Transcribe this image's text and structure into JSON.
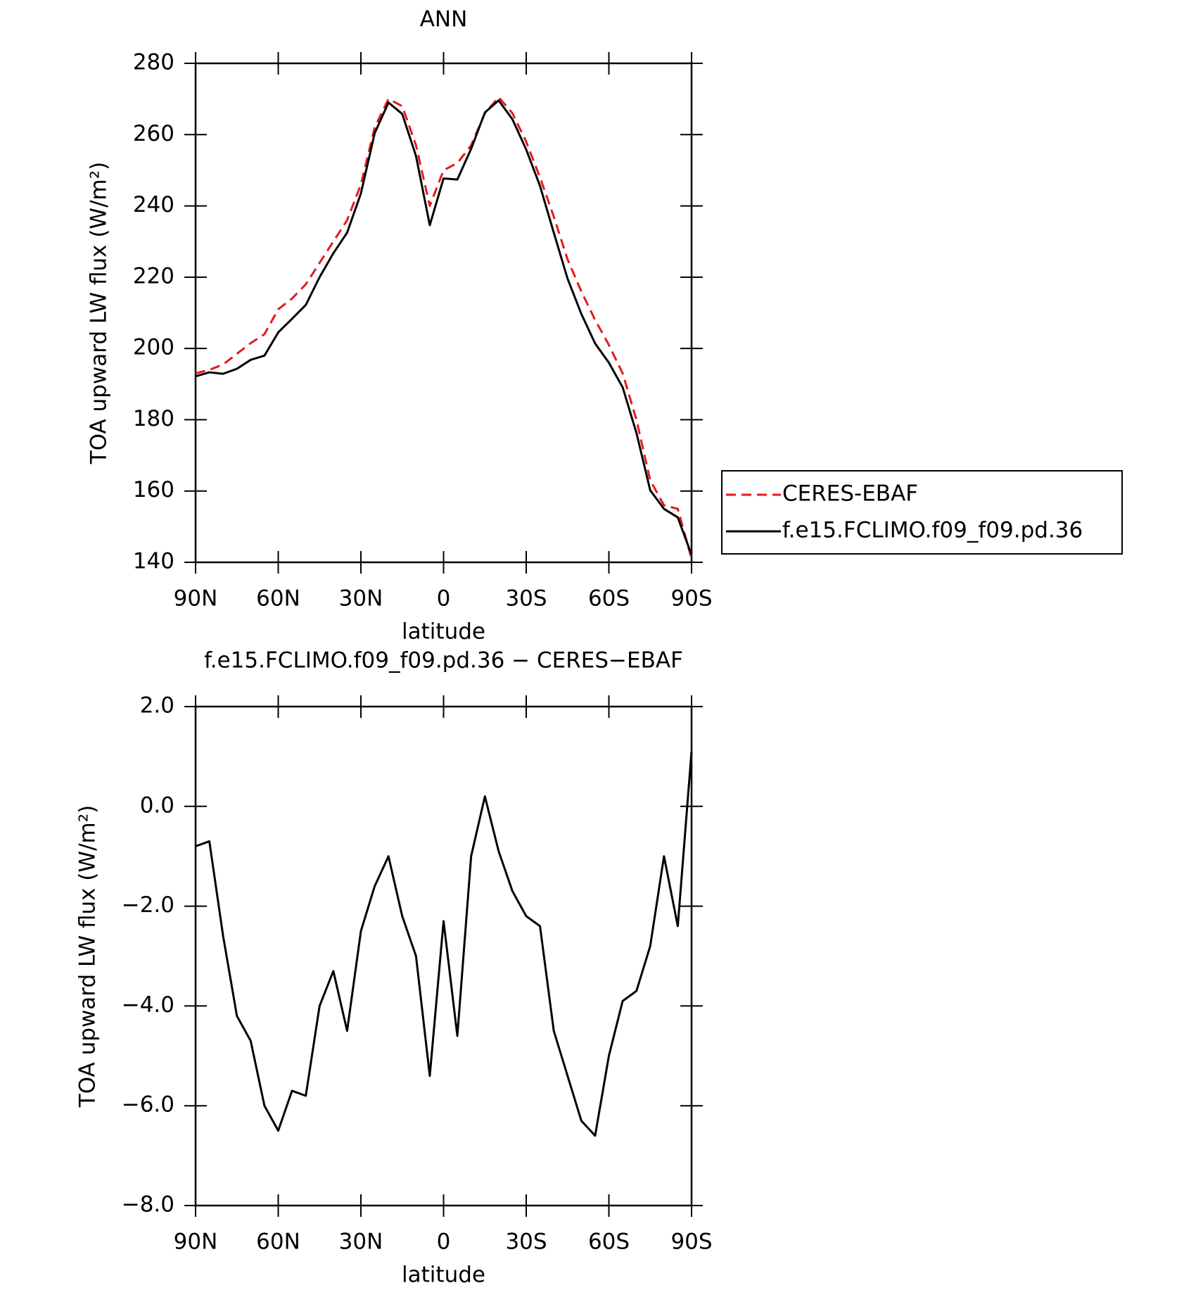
{
  "chart_data": [
    {
      "type": "line",
      "title": "ANN",
      "xlabel": "latitude",
      "ylabel": "TOA upward LW flux (W/m²)",
      "x": [
        90,
        85,
        80,
        75,
        70,
        65,
        60,
        55,
        50,
        45,
        40,
        35,
        30,
        25,
        20,
        15,
        10,
        5,
        0,
        -5,
        -10,
        -15,
        -20,
        -25,
        -30,
        -35,
        -40,
        -45,
        -50,
        -55,
        -60,
        -65,
        -70,
        -75,
        -80,
        -85,
        -90
      ],
      "xlim": [
        90,
        -90
      ],
      "xticks": [
        {
          "value": 90,
          "label": "90N"
        },
        {
          "value": 60,
          "label": "60N"
        },
        {
          "value": 30,
          "label": "30N"
        },
        0,
        {
          "value": -30,
          "label": "30S"
        },
        {
          "value": -60,
          "label": "60S"
        },
        {
          "value": -90,
          "label": "90S"
        }
      ],
      "ylim": [
        140,
        280
      ],
      "yticks": [
        140,
        160,
        180,
        200,
        220,
        240,
        260,
        280
      ],
      "legend": "right",
      "series": [
        {
          "name": "CERES-EBAF",
          "color": "#e41a1c",
          "line_style": "dashed",
          "values": [
            193,
            194,
            195.5,
            198.5,
            201.5,
            204,
            211,
            214,
            218,
            224,
            230,
            236,
            246,
            262,
            270,
            268,
            257,
            240,
            250,
            252,
            257,
            266,
            270.5,
            266,
            258,
            248,
            237,
            225,
            216,
            208,
            201,
            193,
            180,
            163,
            156,
            155,
            141
          ]
        },
        {
          "name": "f.e15.FCLIMO.f09_f09.pd.36",
          "color": "#000000",
          "line_style": "solid",
          "values": [
            192.2,
            193.3,
            192.9,
            194.3,
            196.8,
            198,
            204.5,
            208.3,
            212.2,
            220,
            226.7,
            232.5,
            243.5,
            260.4,
            269,
            265.8,
            254,
            234.6,
            247.7,
            247.4,
            256,
            266.2,
            269.6,
            264.3,
            255.8,
            245.6,
            232.5,
            219.6,
            209.7,
            201.4,
            196,
            189.1,
            176.3,
            160.2,
            155,
            152.6,
            142.1
          ]
        }
      ]
    },
    {
      "type": "line",
      "title": "f.e15.FCLIMO.f09_f09.pd.36 − CERES−EBAF",
      "xlabel": "latitude",
      "ylabel": "TOA upward LW flux (W/m²)",
      "x": [
        90,
        85,
        80,
        75,
        70,
        65,
        60,
        55,
        50,
        45,
        40,
        35,
        30,
        25,
        20,
        15,
        10,
        5,
        0,
        -5,
        -10,
        -15,
        -20,
        -25,
        -30,
        -35,
        -40,
        -45,
        -50,
        -55,
        -60,
        -65,
        -70,
        -75,
        -80,
        -85,
        -90
      ],
      "xlim": [
        90,
        -90
      ],
      "xticks": [
        {
          "value": 90,
          "label": "90N"
        },
        {
          "value": 60,
          "label": "60N"
        },
        {
          "value": 30,
          "label": "30N"
        },
        0,
        {
          "value": -30,
          "label": "30S"
        },
        {
          "value": -60,
          "label": "60S"
        },
        {
          "value": -90,
          "label": "90S"
        }
      ],
      "ylim": [
        -8,
        2
      ],
      "yticks": [
        {
          "value": -8,
          "label": "−8.0"
        },
        {
          "value": -6,
          "label": "−6.0"
        },
        {
          "value": -4,
          "label": "−4.0"
        },
        {
          "value": -2,
          "label": "−2.0"
        },
        {
          "value": 0,
          "label": "0.0"
        },
        {
          "value": 2,
          "label": "2.0"
        }
      ],
      "series": [
        {
          "color": "#000000",
          "line_style": "solid",
          "values": [
            -0.8,
            -0.7,
            -2.6,
            -4.2,
            -4.7,
            -6.0,
            -6.5,
            -5.7,
            -5.8,
            -4.0,
            -3.3,
            -4.5,
            -2.5,
            -1.6,
            -1.0,
            -2.2,
            -3.0,
            -5.4,
            -2.3,
            -4.6,
            -1.0,
            0.2,
            -0.9,
            -1.7,
            -2.2,
            -2.4,
            -4.5,
            -5.4,
            -6.3,
            -6.6,
            -5.0,
            -3.9,
            -3.7,
            -2.8,
            -1.0,
            -2.4,
            1.1
          ]
        }
      ]
    }
  ]
}
